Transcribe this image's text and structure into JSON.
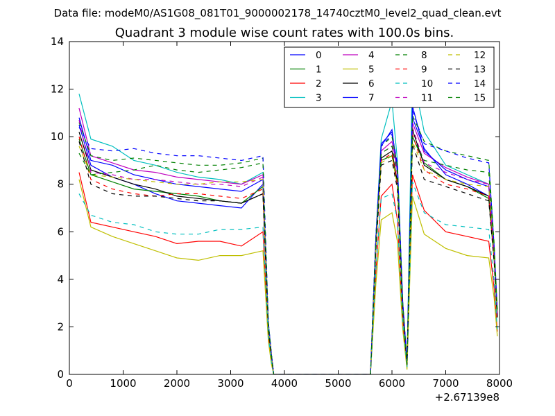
{
  "chart_data": {
    "type": "line",
    "suptitle": "Data file: modeM0/AS1G08_081T01_9000002178_14740cztM0_level2_quad_clean.evt",
    "title": "Quadrant 3 module wise count rates with 100.0s bins.",
    "xlabel": "",
    "ylabel": "",
    "x_offset_label": "+2.67139e8",
    "xlim": [
      0,
      8000
    ],
    "ylim": [
      0,
      14
    ],
    "xticks": [
      0,
      1000,
      2000,
      3000,
      4000,
      5000,
      6000,
      7000,
      8000
    ],
    "yticks": [
      0,
      2,
      4,
      6,
      8,
      10,
      12,
      14
    ],
    "grid": false,
    "legend_position": "top-right",
    "series": [
      {
        "name": "0",
        "color": "#0000ff",
        "dash": "solid",
        "x": [
          180,
          400,
          800,
          1200,
          1600,
          2000,
          2400,
          2800,
          3200,
          3600,
          3700,
          3760,
          3800,
          5600,
          5700,
          5800,
          6000,
          6100,
          6200,
          6280,
          6380,
          6600,
          7000,
          7400,
          7800,
          7900,
          7960
        ],
        "y": [
          10.5,
          8.8,
          8.3,
          8.0,
          7.6,
          7.3,
          7.2,
          7.1,
          7.0,
          8.0,
          2.0,
          0.8,
          0,
          0,
          5.5,
          9.6,
          10.3,
          8.5,
          3.0,
          0.5,
          10.8,
          9.5,
          8.4,
          8.0,
          7.5,
          5.0,
          2.5
        ]
      },
      {
        "name": "1",
        "color": "#008000",
        "dash": "solid",
        "x": [
          180,
          400,
          800,
          1200,
          1600,
          2000,
          2400,
          2800,
          3200,
          3600,
          3700,
          3760,
          3800,
          5600,
          5700,
          5800,
          6000,
          6100,
          6200,
          6280,
          6380,
          6600,
          7000,
          7400,
          7800,
          7900,
          7960
        ],
        "y": [
          9.9,
          8.4,
          8.1,
          7.8,
          7.7,
          7.6,
          7.5,
          7.3,
          7.2,
          7.9,
          2.0,
          0.7,
          0,
          0,
          5.3,
          9.0,
          9.2,
          8.0,
          2.8,
          0.4,
          10.0,
          8.9,
          8.2,
          7.9,
          7.4,
          4.8,
          2.4
        ]
      },
      {
        "name": "2",
        "color": "#ff0000",
        "dash": "solid",
        "x": [
          180,
          400,
          800,
          1200,
          1600,
          2000,
          2400,
          2800,
          3200,
          3600,
          3700,
          3760,
          3800,
          5600,
          5700,
          5800,
          6000,
          6100,
          6200,
          6280,
          6380,
          6600,
          7000,
          7400,
          7800,
          7900,
          7960
        ],
        "y": [
          8.5,
          6.4,
          6.2,
          6.0,
          5.8,
          5.5,
          5.6,
          5.6,
          5.4,
          6.0,
          1.6,
          0.5,
          0,
          0,
          4.3,
          7.5,
          8.0,
          6.5,
          2.2,
          0.3,
          8.4,
          6.9,
          6.0,
          5.8,
          5.6,
          3.6,
          1.8
        ]
      },
      {
        "name": "3",
        "color": "#00bfbf",
        "dash": "solid",
        "x": [
          180,
          400,
          800,
          1200,
          1600,
          2000,
          2400,
          2800,
          3200,
          3600,
          3700,
          3760,
          3800,
          5600,
          5700,
          5800,
          6000,
          6100,
          6200,
          6280,
          6380,
          6600,
          7000,
          7400,
          7800,
          7900,
          7960
        ],
        "y": [
          11.8,
          9.9,
          9.6,
          9.0,
          8.8,
          8.5,
          8.3,
          8.2,
          8.0,
          8.5,
          2.2,
          0.8,
          0,
          0,
          5.8,
          9.9,
          11.5,
          9.0,
          3.1,
          0.5,
          12.7,
          10.2,
          8.8,
          8.4,
          8.0,
          5.2,
          2.6
        ]
      },
      {
        "name": "4",
        "color": "#bf00bf",
        "dash": "solid",
        "x": [
          180,
          400,
          800,
          1200,
          1600,
          2000,
          2400,
          2800,
          3200,
          3600,
          3700,
          3760,
          3800,
          5600,
          5700,
          5800,
          6000,
          6100,
          6200,
          6280,
          6380,
          6600,
          7000,
          7400,
          7800,
          7900,
          7960
        ],
        "y": [
          11.2,
          9.2,
          8.9,
          8.6,
          8.5,
          8.3,
          8.2,
          8.1,
          8.0,
          8.4,
          2.1,
          0.8,
          0,
          0,
          5.6,
          9.4,
          9.8,
          8.6,
          3.0,
          0.5,
          10.6,
          9.3,
          8.7,
          8.3,
          8.0,
          5.1,
          2.5
        ]
      },
      {
        "name": "5",
        "color": "#bfbf00",
        "dash": "solid",
        "x": [
          180,
          400,
          800,
          1200,
          1600,
          2000,
          2400,
          2800,
          3200,
          3600,
          3700,
          3760,
          3800,
          5600,
          5700,
          5800,
          6000,
          6100,
          6200,
          6280,
          6380,
          6600,
          7000,
          7400,
          7800,
          7900,
          7960
        ],
        "y": [
          8.2,
          6.2,
          5.8,
          5.5,
          5.2,
          4.9,
          4.8,
          5.0,
          5.0,
          5.2,
          1.4,
          0.4,
          0,
          0,
          3.8,
          6.5,
          6.8,
          5.6,
          1.9,
          0.2,
          7.5,
          5.9,
          5.3,
          5.0,
          4.9,
          3.2,
          1.6
        ]
      },
      {
        "name": "6",
        "color": "#000000",
        "dash": "solid",
        "x": [
          180,
          400,
          800,
          1200,
          1600,
          2000,
          2400,
          2800,
          3200,
          3600,
          3700,
          3760,
          3800,
          5600,
          5700,
          5800,
          6000,
          6100,
          6200,
          6280,
          6380,
          6600,
          7000,
          7400,
          7800,
          7900,
          7960
        ],
        "y": [
          10.2,
          8.6,
          8.3,
          8.0,
          7.8,
          7.5,
          7.4,
          7.3,
          7.2,
          7.6,
          2.0,
          0.7,
          0,
          0,
          5.4,
          9.1,
          9.4,
          8.1,
          2.8,
          0.4,
          10.3,
          8.8,
          8.2,
          7.9,
          7.5,
          4.9,
          2.4
        ]
      },
      {
        "name": "7",
        "color": "#0000ff",
        "dash": "solid",
        "x": [
          180,
          400,
          800,
          1200,
          1600,
          2000,
          2400,
          2800,
          3200,
          3600,
          3700,
          3760,
          3800,
          5600,
          5700,
          5800,
          6000,
          6100,
          6200,
          6280,
          6380,
          6600,
          7000,
          7400,
          7800,
          7900,
          7960
        ],
        "y": [
          10.8,
          9.0,
          8.8,
          8.4,
          8.2,
          8.0,
          7.9,
          7.8,
          7.7,
          8.2,
          2.1,
          0.8,
          0,
          0,
          5.7,
          9.7,
          10.2,
          8.7,
          3.0,
          0.5,
          11.3,
          9.4,
          8.6,
          8.2,
          7.9,
          5.0,
          2.5
        ]
      },
      {
        "name": "8",
        "color": "#008000",
        "dash": "dashed",
        "x": [
          180,
          400,
          800,
          1200,
          1600,
          2000,
          2400,
          2800,
          3200,
          3600,
          3700,
          3760,
          3800,
          5600,
          5700,
          5800,
          6000,
          6100,
          6200,
          6280,
          6380,
          6600,
          7000,
          7400,
          7800,
          7900,
          7960
        ],
        "y": [
          10.6,
          9.2,
          9.0,
          9.1,
          9.0,
          8.9,
          8.8,
          8.8,
          8.9,
          9.1,
          2.2,
          0.8,
          0,
          0,
          5.8,
          9.6,
          10.0,
          8.8,
          3.0,
          0.5,
          10.9,
          9.8,
          9.4,
          9.2,
          9.0,
          5.5,
          2.7
        ]
      },
      {
        "name": "9",
        "color": "#ff0000",
        "dash": "dashed",
        "x": [
          180,
          400,
          800,
          1200,
          1600,
          2000,
          2400,
          2800,
          3200,
          3600,
          3700,
          3760,
          3800,
          5600,
          5700,
          5800,
          6000,
          6100,
          6200,
          6280,
          6380,
          6600,
          7000,
          7400,
          7800,
          7900,
          7960
        ],
        "y": [
          10.0,
          8.2,
          7.8,
          7.6,
          7.5,
          7.6,
          7.6,
          7.5,
          7.4,
          7.8,
          2.0,
          0.7,
          0,
          0,
          5.4,
          9.0,
          9.3,
          8.0,
          2.8,
          0.4,
          10.1,
          8.6,
          8.0,
          7.8,
          7.5,
          4.8,
          2.4
        ]
      },
      {
        "name": "10",
        "color": "#00bfbf",
        "dash": "dashed",
        "x": [
          180,
          400,
          800,
          1200,
          1600,
          2000,
          2400,
          2800,
          3200,
          3600,
          3700,
          3760,
          3800,
          5600,
          5700,
          5800,
          6000,
          6100,
          6200,
          6280,
          6380,
          6600,
          7000,
          7400,
          7800,
          7900,
          7960
        ],
        "y": [
          7.6,
          6.7,
          6.4,
          6.3,
          6.0,
          5.9,
          5.9,
          6.1,
          6.1,
          6.2,
          1.6,
          0.5,
          0,
          0,
          4.4,
          7.4,
          7.6,
          6.5,
          2.2,
          0.3,
          8.1,
          6.8,
          6.3,
          6.2,
          6.1,
          3.9,
          1.9
        ]
      },
      {
        "name": "11",
        "color": "#bf00bf",
        "dash": "dashed",
        "x": [
          180,
          400,
          800,
          1200,
          1600,
          2000,
          2400,
          2800,
          3200,
          3600,
          3700,
          3760,
          3800,
          5600,
          5700,
          5800,
          6000,
          6100,
          6200,
          6280,
          6380,
          6600,
          7000,
          7400,
          7800,
          7900,
          7960
        ],
        "y": [
          10.7,
          8.5,
          8.4,
          8.2,
          8.2,
          8.1,
          8.0,
          8.0,
          7.9,
          8.3,
          2.1,
          0.8,
          0,
          0,
          5.5,
          9.3,
          9.6,
          8.4,
          2.9,
          0.4,
          10.4,
          8.9,
          8.5,
          8.2,
          8.0,
          5.1,
          2.5
        ]
      },
      {
        "name": "12",
        "color": "#bfbf00",
        "dash": "dashed",
        "x": [
          180,
          400,
          800,
          1200,
          1600,
          2000,
          2400,
          2800,
          3200,
          3600,
          3700,
          3760,
          3800,
          5600,
          5700,
          5800,
          6000,
          6100,
          6200,
          6280,
          6380,
          6600,
          7000,
          7400,
          7800,
          7900,
          7960
        ],
        "y": [
          9.6,
          8.4,
          8.3,
          8.2,
          8.1,
          8.0,
          8.0,
          8.1,
          8.1,
          8.2,
          2.0,
          0.7,
          0,
          0,
          5.3,
          8.9,
          9.2,
          7.9,
          2.7,
          0.4,
          9.8,
          8.6,
          8.2,
          8.0,
          7.9,
          5.0,
          2.4
        ]
      },
      {
        "name": "13",
        "color": "#000000",
        "dash": "dashed",
        "x": [
          180,
          400,
          800,
          1200,
          1600,
          2000,
          2400,
          2800,
          3200,
          3600,
          3700,
          3760,
          3800,
          5600,
          5700,
          5800,
          6000,
          6100,
          6200,
          6280,
          6380,
          6600,
          7000,
          7400,
          7800,
          7900,
          7960
        ],
        "y": [
          9.8,
          8.0,
          7.6,
          7.5,
          7.5,
          7.4,
          7.3,
          7.3,
          7.2,
          7.6,
          1.9,
          0.7,
          0,
          0,
          5.2,
          8.8,
          9.0,
          7.8,
          2.7,
          0.4,
          9.7,
          8.2,
          7.9,
          7.6,
          7.3,
          4.7,
          2.3
        ]
      },
      {
        "name": "14",
        "color": "#0000ff",
        "dash": "dashed",
        "x": [
          180,
          400,
          800,
          1200,
          1600,
          2000,
          2400,
          2800,
          3200,
          3600,
          3700,
          3760,
          3800,
          5600,
          5700,
          5800,
          6000,
          6100,
          6200,
          6280,
          6380,
          6600,
          7000,
          7400,
          7800,
          7900,
          7960
        ],
        "y": [
          10.4,
          9.5,
          9.4,
          9.5,
          9.3,
          9.2,
          9.2,
          9.1,
          9.0,
          9.2,
          2.2,
          0.8,
          0,
          0,
          5.8,
          9.6,
          10.1,
          8.9,
          3.0,
          0.5,
          11.1,
          9.7,
          9.4,
          9.1,
          8.9,
          5.4,
          2.7
        ]
      },
      {
        "name": "15",
        "color": "#008000",
        "dash": "dashed",
        "x": [
          180,
          400,
          800,
          1200,
          1600,
          2000,
          2400,
          2800,
          3200,
          3600,
          3700,
          3760,
          3800,
          5600,
          5700,
          5800,
          6000,
          6100,
          6200,
          6280,
          6380,
          6600,
          7000,
          7400,
          7800,
          7900,
          7960
        ],
        "y": [
          9.3,
          8.4,
          8.5,
          8.6,
          8.8,
          8.6,
          8.5,
          8.6,
          8.7,
          8.9,
          2.1,
          0.8,
          0,
          0,
          5.6,
          9.3,
          9.6,
          8.5,
          2.9,
          0.4,
          10.0,
          9.0,
          8.8,
          8.6,
          8.5,
          5.3,
          2.6
        ]
      }
    ]
  }
}
